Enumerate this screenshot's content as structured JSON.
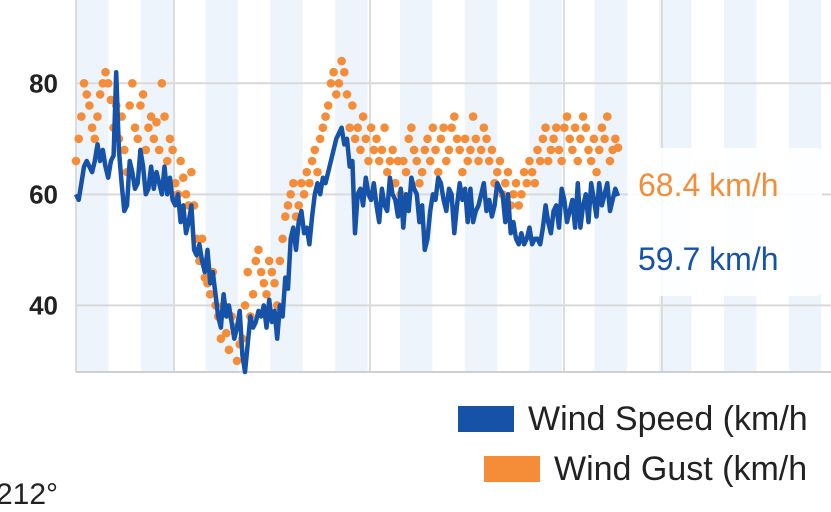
{
  "chart_data": {
    "type": "line",
    "title": "",
    "xlabel": "",
    "ylabel": "",
    "ylim": [
      28,
      95
    ],
    "yticks": [
      40,
      60,
      80
    ],
    "grid": true,
    "legend_position": "bottom-right",
    "series": [
      {
        "name": "Wind Speed (km/h",
        "style": "line",
        "color": "#1652a8",
        "end_label": "59.7 km/h",
        "values": [
          60,
          59,
          62,
          65,
          66,
          65,
          64,
          66,
          69,
          66,
          68,
          65,
          63,
          66,
          67,
          82,
          68,
          62,
          57,
          58,
          66,
          64,
          61,
          62,
          68,
          65,
          60,
          61,
          65,
          61,
          64,
          62,
          60,
          65,
          60,
          63,
          59,
          58,
          60,
          55,
          58,
          53,
          55,
          58,
          50,
          49,
          51,
          48,
          46,
          50,
          44,
          46,
          42,
          38,
          36,
          42,
          38,
          40,
          37,
          34,
          36,
          39,
          31,
          28,
          33,
          38,
          36,
          37,
          39,
          38,
          40,
          36,
          41,
          37,
          39,
          34,
          40,
          38,
          45,
          43,
          52,
          54,
          50,
          55,
          57,
          53,
          54,
          51,
          56,
          60,
          62,
          60,
          63,
          62,
          64,
          66,
          68,
          70,
          71,
          72,
          69,
          70,
          65,
          66,
          53,
          60,
          61,
          58,
          63,
          60,
          59,
          62,
          58,
          55,
          61,
          58,
          57,
          63,
          60,
          59,
          56,
          61,
          54,
          60,
          57,
          63,
          61,
          60,
          55,
          58,
          50,
          52,
          57,
          60,
          59,
          63,
          62,
          59,
          57,
          61,
          60,
          53,
          58,
          62,
          59,
          61,
          55,
          61,
          55,
          57,
          58,
          60,
          62,
          57,
          59,
          56,
          58,
          62,
          61,
          60,
          55,
          60,
          53,
          55,
          52,
          51,
          53,
          51,
          52,
          54,
          51,
          52,
          52,
          51,
          54,
          58,
          55,
          53,
          57,
          58,
          54,
          61,
          59,
          55,
          57,
          59,
          54,
          62,
          54,
          58,
          60,
          55,
          62,
          59,
          56,
          62,
          58,
          60,
          62,
          57,
          59,
          61,
          59.7
        ]
      },
      {
        "name": "Wind Gust (km/h",
        "style": "scatter",
        "color": "#f58c38",
        "end_label": "68.4 km/h",
        "values": [
          66,
          70,
          74,
          80,
          78,
          76,
          72,
          70,
          74,
          78,
          80,
          82,
          80,
          77,
          72,
          76,
          70,
          74,
          68,
          64,
          76,
          80,
          72,
          70,
          76,
          78,
          68,
          72,
          74,
          70,
          73,
          68,
          80,
          74,
          66,
          70,
          68,
          62,
          60,
          66,
          63,
          60,
          58,
          64,
          58,
          52,
          48,
          52,
          45,
          44,
          42,
          46,
          40,
          38,
          34,
          40,
          35,
          32,
          38,
          36,
          30,
          33,
          34,
          40,
          46,
          38,
          42,
          48,
          50,
          46,
          44,
          42,
          48,
          46,
          44,
          40,
          48,
          52,
          56,
          58,
          60,
          62,
          56,
          58,
          62,
          60,
          64,
          62,
          66,
          68,
          64,
          70,
          72,
          74,
          76,
          80,
          82,
          78,
          80,
          84,
          82,
          78,
          72,
          76,
          70,
          72,
          68,
          74,
          70,
          66,
          72,
          68,
          70,
          66,
          68,
          72,
          64,
          66,
          68,
          62,
          66,
          60,
          66,
          64,
          70,
          72,
          68,
          66,
          62,
          64,
          68,
          70,
          66,
          72,
          68,
          64,
          70,
          72,
          66,
          68,
          72,
          74,
          70,
          68,
          64,
          70,
          66,
          68,
          74,
          70,
          66,
          68,
          72,
          70,
          66,
          68,
          62,
          64,
          66,
          60,
          62,
          64,
          58,
          60,
          62,
          58,
          60,
          64,
          62,
          66,
          64,
          62,
          68,
          66,
          70,
          72,
          66,
          68,
          70,
          72,
          68,
          66,
          72,
          74,
          70,
          68,
          72,
          66,
          70,
          74,
          72,
          68,
          66,
          70,
          64,
          68,
          72,
          70,
          74,
          66,
          68,
          70,
          68.4
        ]
      }
    ]
  },
  "corner_text": "212°"
}
